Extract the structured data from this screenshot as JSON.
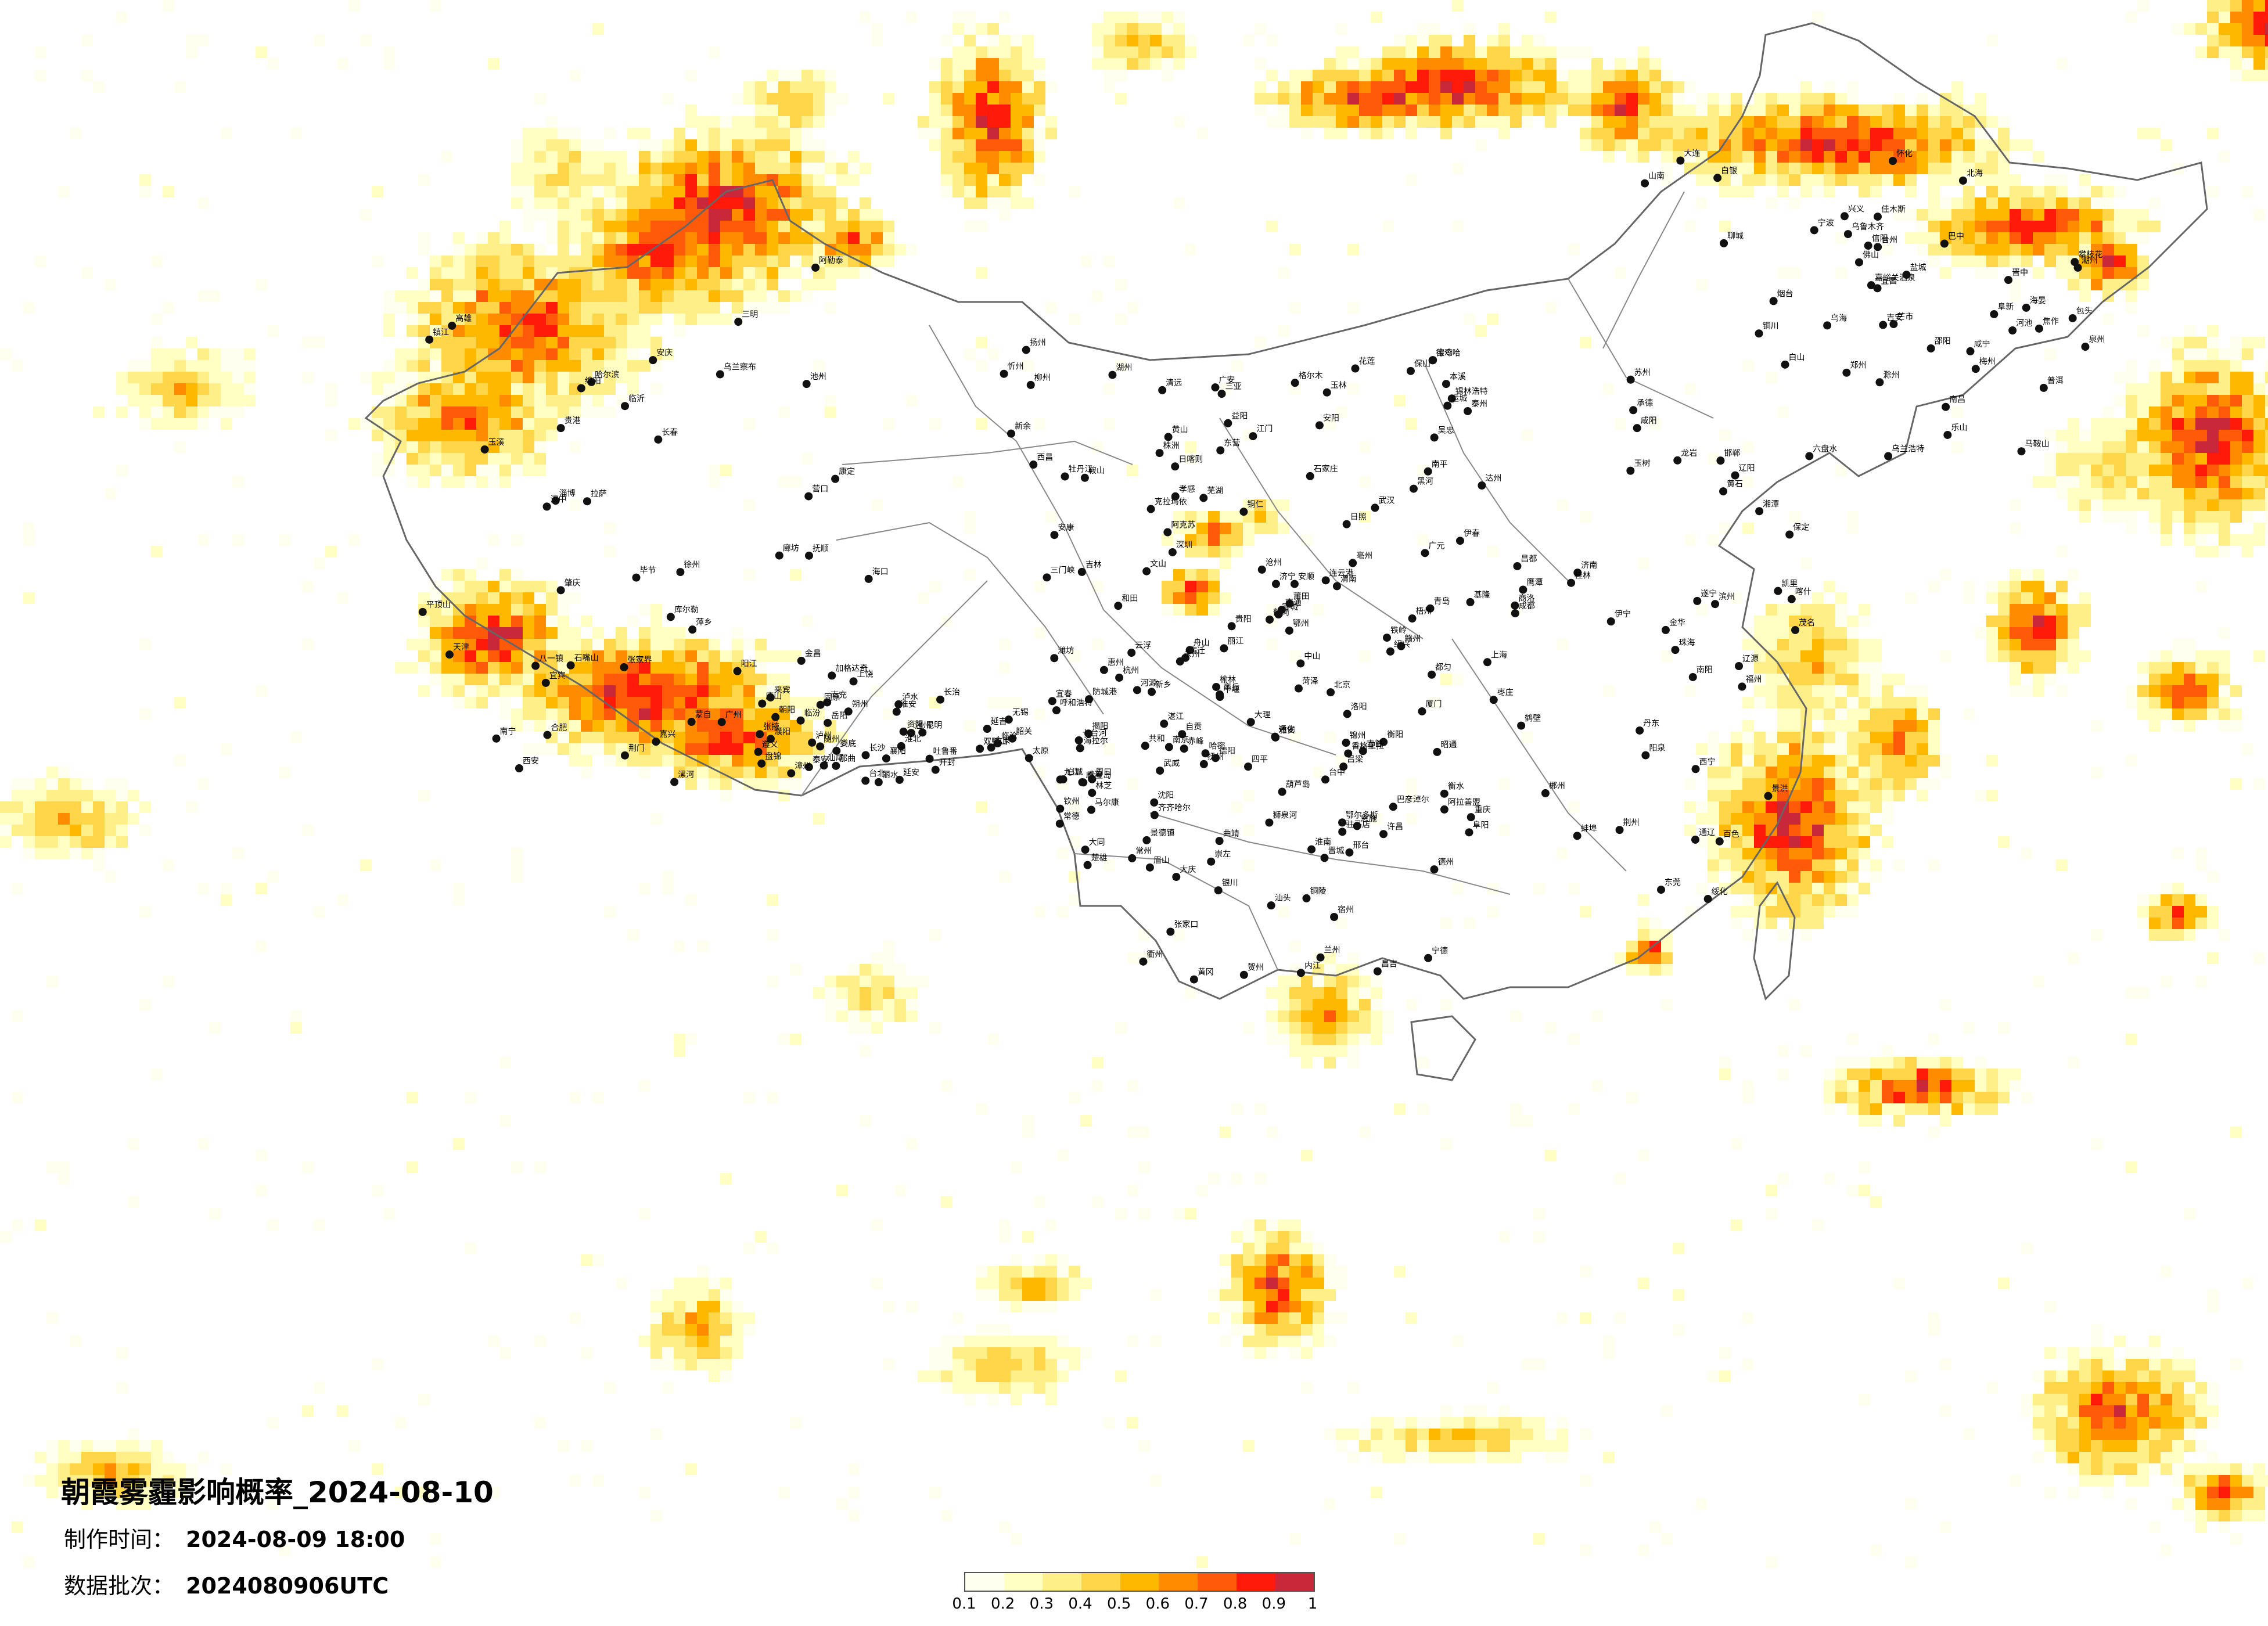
{
  "title": "朝霞雾霾影响概率_2024-08-10",
  "meta": {
    "made_label": "制作时间：",
    "made_value": "2024-08-09 18:00",
    "batch_label": "数据批次：",
    "batch_value": "2024080906UTC"
  },
  "legend": {
    "colors": [
      "#fffff0",
      "#ffffc4",
      "#ffef88",
      "#ffd64a",
      "#ffb800",
      "#ff8c00",
      "#ff5a0a",
      "#ff1a0a",
      "#c8283a"
    ],
    "ticks": [
      "0.1",
      "0.2",
      "0.3",
      "0.4",
      "0.5",
      "0.6",
      "0.7",
      "0.8",
      "0.9",
      "1"
    ]
  },
  "cities": [
    "阿勒泰",
    "克拉玛依",
    "伊宁",
    "昌吉",
    "乌鲁木齐",
    "吐鲁番",
    "哈密",
    "库尔勒",
    "阿克苏",
    "喀什",
    "和田",
    "嘉峪关酒泉",
    "张掖",
    "武威",
    "金昌",
    "德令哈",
    "西宁",
    "兰州",
    "白银",
    "固原",
    "银川",
    "石嘴山",
    "吴忠",
    "阿拉善盟",
    "巴彦淖尔",
    "包头",
    "呼和浩特",
    "鄂尔多斯",
    "乌兰察布",
    "锡林浩特",
    "通辽",
    "赤峰",
    "乌海",
    "海拉尔",
    "齐齐哈尔",
    "加格达奇",
    "黑河",
    "伊春",
    "鹤岗",
    "佳木斯",
    "双鸭山",
    "七台河",
    "哈尔滨",
    "牡丹江",
    "绥化",
    "大庆",
    "乌兰浩特",
    "白城",
    "四平",
    "长春",
    "吉林",
    "辽源",
    "通化",
    "白山",
    "延吉",
    "沈阳",
    "抚顺",
    "本溪",
    "丹东",
    "锦州",
    "阜新",
    "朝阳",
    "葫芦岛",
    "营口",
    "鞍山",
    "辽阳",
    "铁岭",
    "大连",
    "盘锦",
    "北京",
    "天津",
    "石家庄",
    "保定",
    "张家口",
    "承德",
    "唐山",
    "秦皇岛",
    "廊坊",
    "沧州",
    "衡水",
    "邢台",
    "邯郸",
    "太原",
    "大同",
    "朔州",
    "忻州",
    "阳泉",
    "吕梁",
    "晋中",
    "长治",
    "晋城",
    "临汾",
    "运城",
    "济南",
    "青岛",
    "烟台",
    "威海",
    "潍坊",
    "淄博",
    "东营",
    "滨州",
    "德州",
    "聊城",
    "泰安",
    "济宁",
    "临沂",
    "日照",
    "枣庄",
    "菏泽",
    "郑州",
    "开封",
    "洛阳",
    "平顶山",
    "安阳",
    "鹤壁",
    "新乡",
    "焦作",
    "濮阳",
    "许昌",
    "漯河",
    "三门峡",
    "南阳",
    "商丘",
    "信阳",
    "周口",
    "驻马店",
    "西安",
    "宝鸡",
    "咸阳",
    "渭南",
    "铜川",
    "延安",
    "榆林",
    "汉中",
    "安康",
    "商洛",
    "南京",
    "苏州",
    "无锡",
    "常州",
    "镇江",
    "扬州",
    "泰州",
    "南通",
    "盐城",
    "淮安",
    "宿迁",
    "徐州",
    "连云港",
    "上海",
    "杭州",
    "宁波",
    "温州",
    "绍兴",
    "嘉兴",
    "湖州",
    "金华",
    "衢州",
    "台州",
    "丽水",
    "舟山",
    "合肥",
    "芜湖",
    "蚌埠",
    "淮南",
    "马鞍山",
    "淮北",
    "铜陵",
    "安庆",
    "黄山",
    "阜阳",
    "宿州",
    "滁州",
    "六安",
    "宣城",
    "池州",
    "亳州",
    "福州",
    "厦门",
    "泉州",
    "漳州",
    "莆田",
    "三明",
    "南平",
    "龙岩",
    "宁德",
    "南昌",
    "九江",
    "景德镇",
    "萍乡",
    "新余",
    "鹰潭",
    "赣州",
    "吉安",
    "宜春",
    "抚州",
    "上饶",
    "武汉",
    "黄石",
    "十堰",
    "宜昌",
    "襄阳",
    "鄂州",
    "荆门",
    "孝感",
    "荆州",
    "黄冈",
    "咸宁",
    "随州",
    "恩施",
    "长沙",
    "株洲",
    "湘潭",
    "衡阳",
    "邵阳",
    "岳阳",
    "常德",
    "张家界",
    "益阳",
    "郴州",
    "永州",
    "怀化",
    "娄底",
    "吉首",
    "广州",
    "深圳",
    "珠海",
    "汕头",
    "佛山",
    "韶关",
    "湛江",
    "肇庆",
    "江门",
    "茂名",
    "惠州",
    "梅州",
    "汕尾",
    "河源",
    "阳江",
    "清远",
    "东莞",
    "中山",
    "潮州",
    "揭阳",
    "云浮",
    "南宁",
    "柳州",
    "桂林",
    "梧州",
    "北海",
    "防城港",
    "钦州",
    "贵港",
    "玉林",
    "百色",
    "贺州",
    "河池",
    "来宾",
    "崇左",
    "海口",
    "三亚",
    "成都",
    "自贡",
    "攀枝花",
    "泸州",
    "德阳",
    "绵阳",
    "广元",
    "遂宁",
    "内江",
    "乐山",
    "南充",
    "眉山",
    "宜宾",
    "广安",
    "达州",
    "雅安",
    "巴中",
    "资阳",
    "马尔康",
    "康定",
    "西昌",
    "重庆",
    "贵阳",
    "六盘水",
    "遵义",
    "安顺",
    "毕节",
    "铜仁",
    "凯里",
    "都匀",
    "兴义",
    "昆明",
    "曲靖",
    "玉溪",
    "保山",
    "昭通",
    "丽江",
    "普洱",
    "临沧",
    "楚雄",
    "蒙自",
    "文山",
    "景洪",
    "大理",
    "芒市",
    "泸水",
    "香格里拉",
    "拉萨",
    "日喀则",
    "昌都",
    "林芝",
    "山南",
    "那曲",
    "狮泉河",
    "八一镇",
    "格尔木",
    "玉树",
    "共和",
    "海晏",
    "台北",
    "台中",
    "高雄",
    "花莲",
    "基隆"
  ]
}
